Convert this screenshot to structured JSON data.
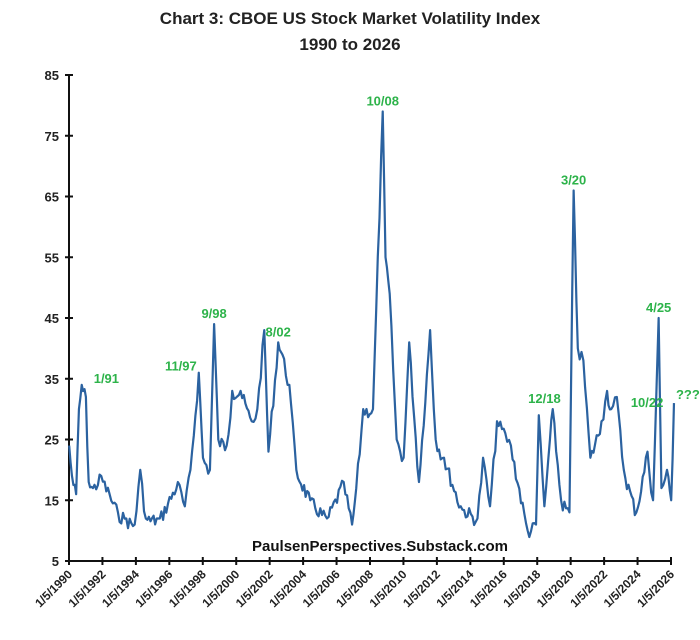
{
  "chart_data": {
    "type": "line",
    "title": "Chart 3: CBOE US Stock Market Volatility Index",
    "subtitle": "1990 to 2026",
    "watermark": "PaulsenPerspectives.Substack.com",
    "xlabel": "",
    "ylabel": "",
    "ylim": [
      5,
      85
    ],
    "yticks": [
      5,
      15,
      25,
      35,
      45,
      55,
      65,
      75,
      85
    ],
    "xticks": [
      "1/5/1990",
      "1/5/1992",
      "1/5/1994",
      "1/5/1996",
      "1/5/1998",
      "1/5/2000",
      "1/5/2002",
      "1/5/2004",
      "1/5/2006",
      "1/5/2008",
      "1/5/2010",
      "1/5/2012",
      "1/5/2014",
      "1/5/2016",
      "1/5/2018",
      "1/5/2020",
      "1/5/2022",
      "1/5/2024",
      "1/5/2026"
    ],
    "grid": false,
    "line_color": "#2b62a0",
    "annotation_color": "#2db34a",
    "series": [
      {
        "x": [
          "1990-01",
          "1990-03",
          "1990-06",
          "1990-08",
          "1990-10",
          "1991-01",
          "1991-03",
          "1991-06",
          "1991-12",
          "1992-06",
          "1992-12",
          "1993-06",
          "1993-12",
          "1994-04",
          "1994-08",
          "1995-06",
          "1996-07",
          "1996-12",
          "1997-04",
          "1997-10",
          "1998-01",
          "1998-06",
          "1998-09",
          "1998-12",
          "1999-06",
          "1999-10",
          "2000-04",
          "2000-12",
          "2001-04",
          "2001-09",
          "2001-12",
          "2002-07",
          "2002-10",
          "2003-03",
          "2003-08",
          "2004-06",
          "2005-06",
          "2006-06",
          "2006-12",
          "2007-03",
          "2007-08",
          "2008-03",
          "2008-10",
          "2008-12",
          "2009-03",
          "2009-08",
          "2010-01",
          "2010-05",
          "2010-12",
          "2011-08",
          "2011-12",
          "2012-06",
          "2013-06",
          "2014-06",
          "2014-10",
          "2015-03",
          "2015-08",
          "2016-02",
          "2016-06",
          "2017-06",
          "2017-12",
          "2018-02",
          "2018-06",
          "2018-10",
          "2018-12",
          "2019-06",
          "2019-12",
          "2020-03",
          "2020-06",
          "2020-10",
          "2021-03",
          "2021-11",
          "2022-03",
          "2022-06",
          "2022-10",
          "2023-03",
          "2023-12",
          "2024-08",
          "2024-12",
          "2025-04",
          "2025-06",
          "2025-10",
          "2026-01",
          "2026-03"
        ],
        "y": [
          24,
          19,
          16,
          30,
          34,
          32,
          18,
          17,
          19,
          16,
          13,
          12,
          11,
          20,
          12,
          12,
          18,
          14,
          20,
          36,
          22,
          20,
          44,
          25,
          24,
          33,
          33,
          28,
          30,
          43,
          23,
          41,
          39,
          34,
          20,
          15,
          12,
          18,
          11,
          17,
          30,
          30,
          79,
          55,
          49,
          25,
          22,
          41,
          18,
          43,
          25,
          22,
          14,
          12,
          22,
          14,
          28,
          26,
          24,
          10,
          11,
          29,
          14,
          25,
          30,
          15,
          13,
          66,
          40,
          38,
          22,
          28,
          33,
          30,
          32,
          20,
          13,
          23,
          15,
          45,
          17,
          20,
          15,
          31
        ]
      }
    ],
    "annotations": [
      {
        "text": "1/91",
        "x": "1990-10",
        "y": 34
      },
      {
        "text": "11/97",
        "x": "1997-10",
        "y": 36
      },
      {
        "text": "9/98",
        "x": "1998-09",
        "y": 44
      },
      {
        "text": "8/02",
        "x": "2002-07",
        "y": 41
      },
      {
        "text": "10/08",
        "x": "2008-10",
        "y": 79
      },
      {
        "text": "12/18",
        "x": "2018-12",
        "y": 30
      },
      {
        "text": "3/20",
        "x": "2020-03",
        "y": 66
      },
      {
        "text": "10/22",
        "x": "2022-10",
        "y": 32
      },
      {
        "text": "4/25",
        "x": "2025-04",
        "y": 45
      },
      {
        "text": "???",
        "x": "2026-03",
        "y": 31
      }
    ]
  }
}
